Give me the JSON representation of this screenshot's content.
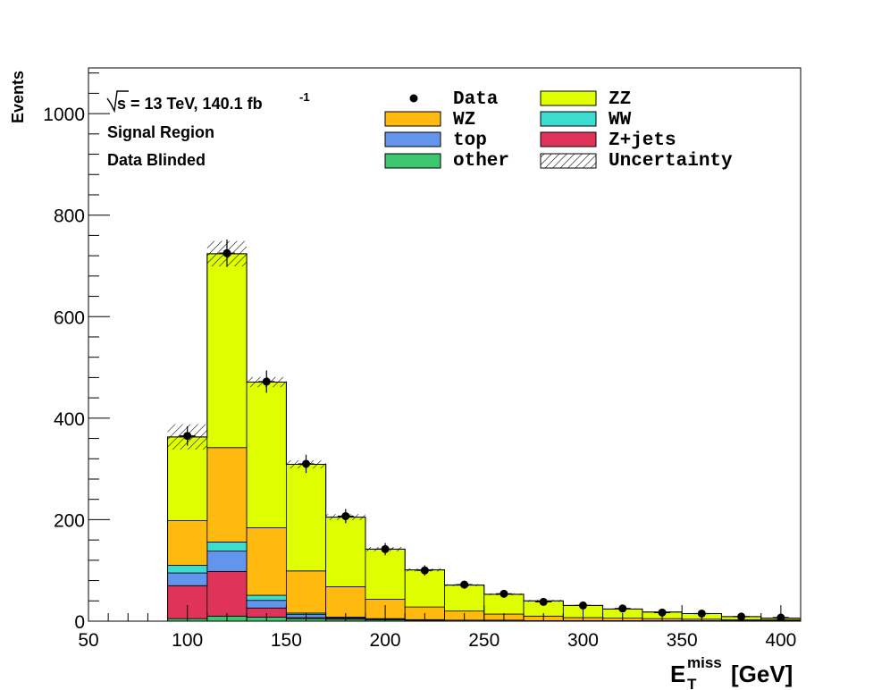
{
  "chart_data": {
    "type": "bar",
    "stacked": true,
    "xlabel_main": "E",
    "xlabel_sup": "miss",
    "xlabel_sub": "T",
    "xlabel_unit": "[GeV]",
    "ylabel": "Events",
    "xlim": [
      50,
      410
    ],
    "ylim": [
      0,
      1090
    ],
    "x_ticks": [
      50,
      100,
      150,
      200,
      250,
      300,
      350,
      400
    ],
    "y_ticks": [
      0,
      200,
      400,
      600,
      800,
      1000
    ],
    "bin_edges": [
      90,
      110,
      130,
      150,
      170,
      190,
      210,
      230,
      250,
      270,
      290,
      310,
      330,
      350,
      370,
      390,
      410
    ],
    "series": [
      {
        "name": "other",
        "color": "#3cc66e",
        "values": [
          5,
          10,
          8,
          5,
          4,
          3,
          2,
          2,
          2,
          1,
          1,
          1,
          1,
          1,
          1,
          1
        ]
      },
      {
        "name": "Z+jets",
        "color": "#e0335a",
        "values": [
          65,
          88,
          18,
          2,
          1,
          0,
          0,
          0,
          0,
          0,
          0,
          0,
          0,
          0,
          0,
          0
        ]
      },
      {
        "name": "top",
        "color": "#6495ed",
        "values": [
          25,
          40,
          15,
          6,
          2,
          1,
          1,
          0,
          0,
          0,
          0,
          0,
          0,
          0,
          0,
          0
        ]
      },
      {
        "name": "WW",
        "color": "#3cdcd0",
        "values": [
          15,
          18,
          10,
          3,
          1,
          1,
          0,
          0,
          0,
          0,
          0,
          0,
          0,
          0,
          0,
          0
        ]
      },
      {
        "name": "WZ",
        "color": "#ffb90f",
        "values": [
          88,
          186,
          133,
          83,
          60,
          38,
          25,
          18,
          12,
          9,
          6,
          5,
          4,
          3,
          2,
          2
        ]
      },
      {
        "name": "ZZ",
        "color": "#dfff00",
        "values": [
          165,
          382,
          287,
          210,
          137,
          99,
          73,
          51,
          39,
          30,
          24,
          18,
          13,
          11,
          6,
          3
        ]
      }
    ],
    "data_points": {
      "name": "Data",
      "x": [
        100,
        120,
        140,
        160,
        180,
        200,
        220,
        240,
        260,
        280,
        300,
        320,
        340,
        360,
        380,
        400
      ],
      "y": [
        365,
        725,
        472,
        310,
        207,
        142,
        100,
        72,
        54,
        38,
        31,
        25,
        17,
        15,
        9,
        7
      ],
      "yerr": [
        19,
        27,
        22,
        18,
        14,
        12,
        10,
        8,
        7,
        6,
        6,
        5,
        4,
        4,
        3,
        3
      ]
    },
    "uncertainty": {
      "name": "Uncertainty",
      "values": [
        25,
        25,
        10,
        8,
        6,
        4,
        3,
        2,
        2,
        2,
        1,
        1,
        1,
        1,
        1,
        1
      ]
    },
    "legend": {
      "placement": "top-right",
      "entries": [
        "Data",
        "ZZ",
        "WZ",
        "WW",
        "top",
        "Z+jets",
        "other",
        "Uncertainty"
      ]
    },
    "annotations": {
      "energy_sqrt": "s",
      "energy_text": " = 13 TeV, 140.1 fb",
      "energy_sup": "-1",
      "region": "Signal Region",
      "status": "Data Blinded"
    }
  }
}
